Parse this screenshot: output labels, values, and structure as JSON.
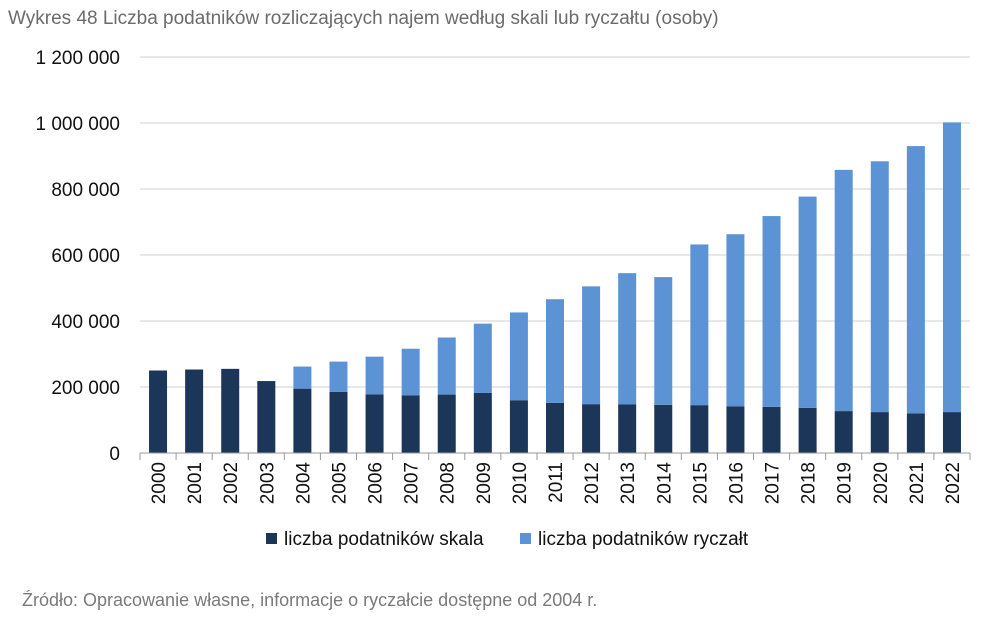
{
  "title": "Wykres 48 Liczba podatników rozliczających najem według skali lub ryczałtu (osoby)",
  "source": "Źródło: Opracowanie własne, informacje o ryczałcie dostępne od 2004 r.",
  "colors": {
    "skala": "#1c365a",
    "ryczalt": "#5b93d5",
    "grid": "#d0d0d0",
    "axis": "#9a9a9a"
  },
  "chart_data": {
    "type": "bar",
    "stacked": true,
    "categories": [
      "2000",
      "2001",
      "2002",
      "2003",
      "2004",
      "2005",
      "2006",
      "2007",
      "2008",
      "2009",
      "2010",
      "2011",
      "2012",
      "2013",
      "2014",
      "2015",
      "2016",
      "2017",
      "2018",
      "2019",
      "2020",
      "2021",
      "2022"
    ],
    "series": [
      {
        "name": "liczba podatników skala",
        "values": [
          250000,
          253000,
          255000,
          218000,
          195000,
          185000,
          178000,
          175000,
          177000,
          182000,
          160000,
          152000,
          148000,
          147000,
          146000,
          145000,
          141000,
          140000,
          137000,
          127000,
          124000,
          120000,
          124000
        ]
      },
      {
        "name": "liczba podatników ryczałt",
        "values": [
          0,
          0,
          0,
          0,
          67000,
          92000,
          114000,
          141000,
          173000,
          210000,
          266000,
          314000,
          357000,
          398000,
          387000,
          487000,
          522000,
          578000,
          640000,
          731000,
          760000,
          810000,
          878000
        ]
      }
    ],
    "ylim": [
      0,
      1200000
    ],
    "yticks": [
      "0",
      "200 000",
      "400 000",
      "600 000",
      "800 000",
      "1 000 000",
      "1 200 000"
    ],
    "ytick_values": [
      0,
      200000,
      400000,
      600000,
      800000,
      1000000,
      1200000
    ],
    "legend_position": "bottom",
    "grid": true
  }
}
